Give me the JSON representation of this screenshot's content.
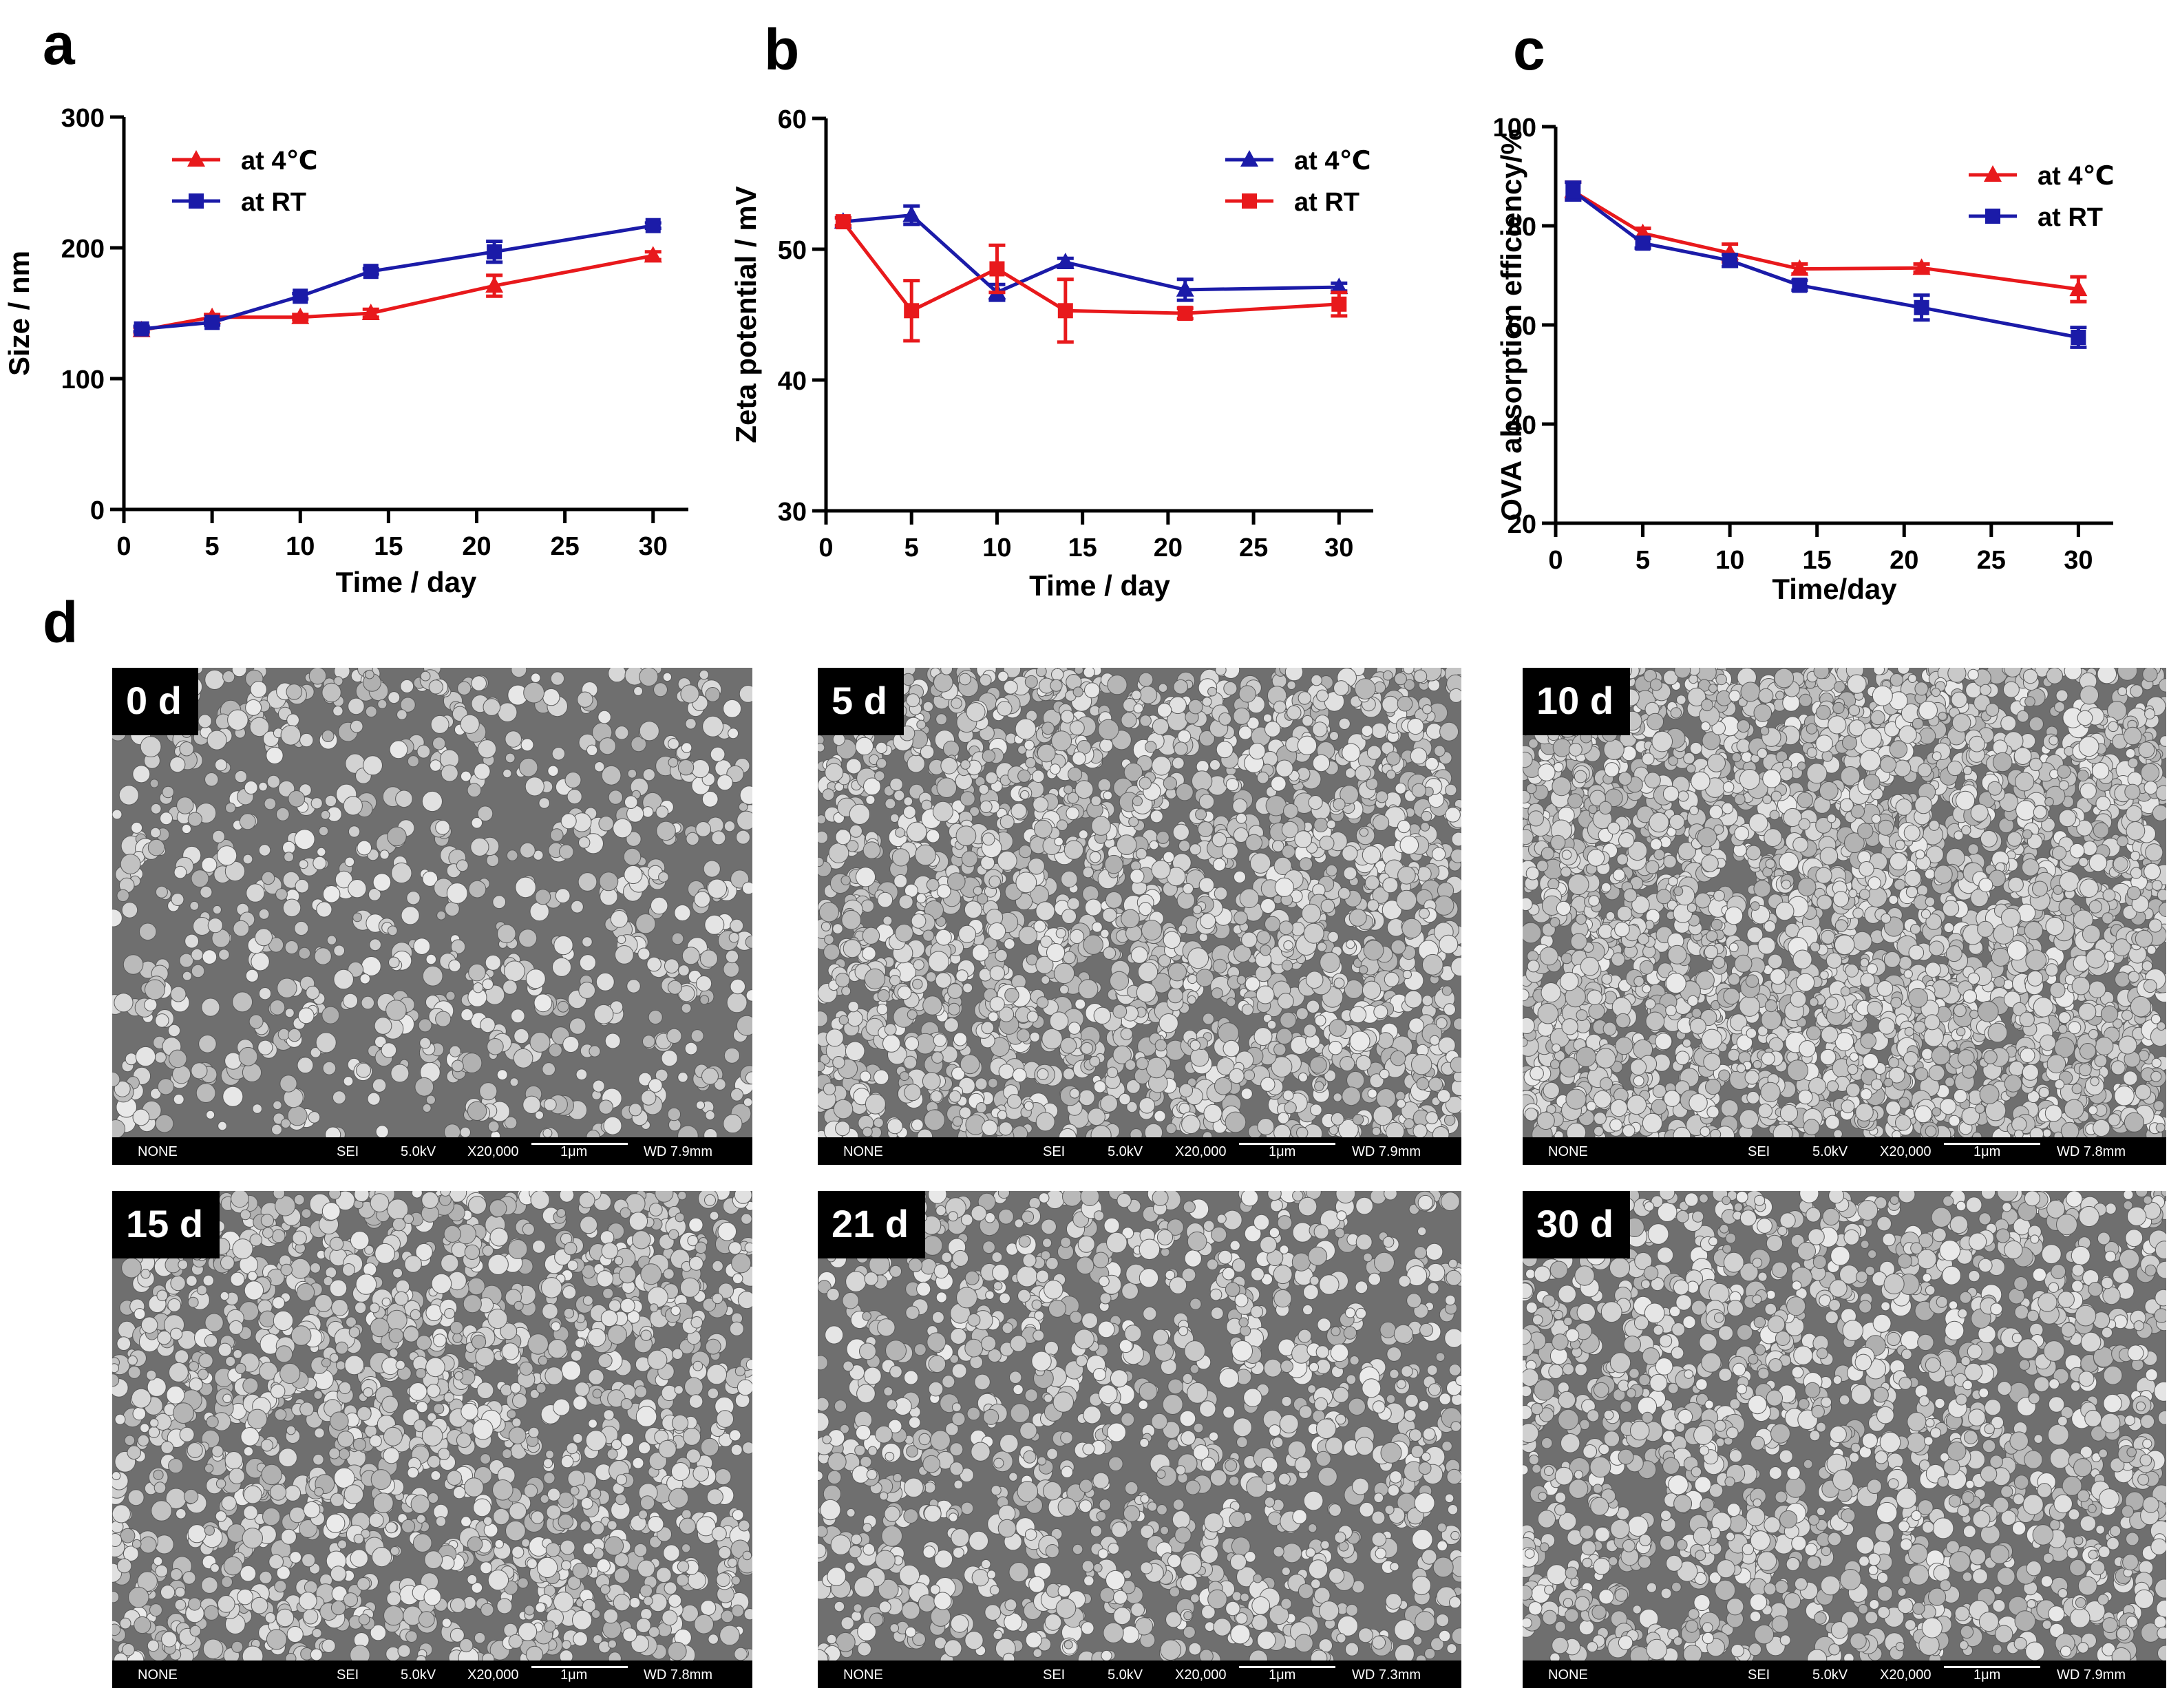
{
  "panel_letters": {
    "a": "a",
    "b": "b",
    "c": "c",
    "d": "d"
  },
  "colors": {
    "at_4C": "#e8191c",
    "at_RT": "#1b1ba8",
    "axis": "#000000"
  },
  "chart_data": [
    {
      "type": "line",
      "panel": "a",
      "title": "",
      "xlabel": "Time / day",
      "ylabel": "Size / nm",
      "xlim": [
        0,
        32
      ],
      "ylim": [
        0,
        300
      ],
      "xticks": [
        0,
        5,
        10,
        15,
        20,
        25,
        30
      ],
      "yticks": [
        0,
        100,
        200,
        300
      ],
      "legend_position": "top-left",
      "series": [
        {
          "name": "at 4℃",
          "marker": "triangle",
          "color": "#e8191c",
          "x": [
            1,
            5,
            10,
            14,
            21,
            30
          ],
          "y": [
            137,
            147,
            147,
            150,
            171,
            194
          ],
          "err": [
            2,
            2,
            2,
            3,
            8,
            3
          ]
        },
        {
          "name": "at RT",
          "marker": "square",
          "color": "#1b1ba8",
          "x": [
            1,
            5,
            10,
            14,
            21,
            30
          ],
          "y": [
            138,
            143,
            163,
            182,
            197,
            217
          ],
          "err": [
            2,
            2,
            2,
            2,
            8,
            2
          ]
        }
      ]
    },
    {
      "type": "line",
      "panel": "b",
      "title": "",
      "xlabel": "Time  /  day",
      "ylabel": "Zeta potential / mV",
      "xlim": [
        0,
        32
      ],
      "ylim": [
        30,
        60
      ],
      "xticks": [
        0,
        5,
        10,
        15,
        20,
        25,
        30
      ],
      "yticks": [
        30,
        40,
        50,
        60
      ],
      "legend_position": "top-right",
      "series": [
        {
          "name": "at 4℃",
          "marker": "triangle",
          "color": "#1b1ba8",
          "x": [
            1,
            5,
            10,
            14,
            21,
            30
          ],
          "y": [
            52.1,
            52.6,
            46.7,
            49.0,
            46.9,
            47.1
          ],
          "err": [
            0.3,
            0.7,
            0.6,
            0.3,
            0.8,
            0.3
          ]
        },
        {
          "name": "at RT",
          "marker": "square",
          "color": "#e8191c",
          "x": [
            1,
            5,
            10,
            14,
            21,
            30
          ],
          "y": [
            52.1,
            45.3,
            48.5,
            45.3,
            45.1,
            45.8
          ],
          "err": [
            0.3,
            2.3,
            1.8,
            2.4,
            0.4,
            0.9
          ]
        }
      ]
    },
    {
      "type": "line",
      "panel": "c",
      "title": "",
      "xlabel": "Time/day",
      "ylabel": "OVA absorption efficiency/%",
      "xlim": [
        0,
        32
      ],
      "ylim": [
        20,
        100
      ],
      "xticks": [
        0,
        5,
        10,
        15,
        20,
        25,
        30
      ],
      "yticks": [
        20,
        40,
        60,
        80,
        100
      ],
      "legend_position": "top-right",
      "series": [
        {
          "name": "at 4℃",
          "marker": "triangle",
          "color": "#e8191c",
          "x": [
            1,
            5,
            10,
            14,
            21,
            30
          ],
          "y": [
            87,
            78.5,
            74.5,
            71.3,
            71.5,
            67.2
          ],
          "err": [
            1.8,
            1,
            1.8,
            1,
            0.8,
            2.5
          ]
        },
        {
          "name": "at RT",
          "marker": "square",
          "color": "#1b1ba8",
          "x": [
            1,
            5,
            10,
            14,
            21,
            30
          ],
          "y": [
            87,
            76.5,
            73,
            68,
            63.5,
            57.5
          ],
          "err": [
            1.8,
            1,
            1.2,
            1,
            2.5,
            2
          ]
        }
      ]
    }
  ],
  "sem_images": [
    {
      "label": "0 d",
      "bar": {
        "none": "NONE",
        "mode": "SEI",
        "kv": "5.0kV",
        "mag": "X20,000",
        "scale": "1μm",
        "wd": "WD 7.9mm"
      }
    },
    {
      "label": "5 d",
      "bar": {
        "none": "NONE",
        "mode": "SEI",
        "kv": "5.0kV",
        "mag": "X20,000",
        "scale": "1μm",
        "wd": "WD 7.9mm"
      }
    },
    {
      "label": "10 d",
      "bar": {
        "none": "NONE",
        "mode": "SEI",
        "kv": "5.0kV",
        "mag": "X20,000",
        "scale": "1μm",
        "wd": "WD 7.8mm"
      }
    },
    {
      "label": "15 d",
      "bar": {
        "none": "NONE",
        "mode": "SEI",
        "kv": "5.0kV",
        "mag": "X20,000",
        "scale": "1μm",
        "wd": "WD 7.8mm"
      }
    },
    {
      "label": "21 d",
      "bar": {
        "none": "NONE",
        "mode": "SEI",
        "kv": "5.0kV",
        "mag": "X20,000",
        "scale": "1μm",
        "wd": "WD 7.3mm"
      }
    },
    {
      "label": "30 d",
      "bar": {
        "none": "NONE",
        "mode": "SEI",
        "kv": "5.0kV",
        "mag": "X20,000",
        "scale": "1μm",
        "wd": "WD 7.9mm"
      }
    }
  ]
}
